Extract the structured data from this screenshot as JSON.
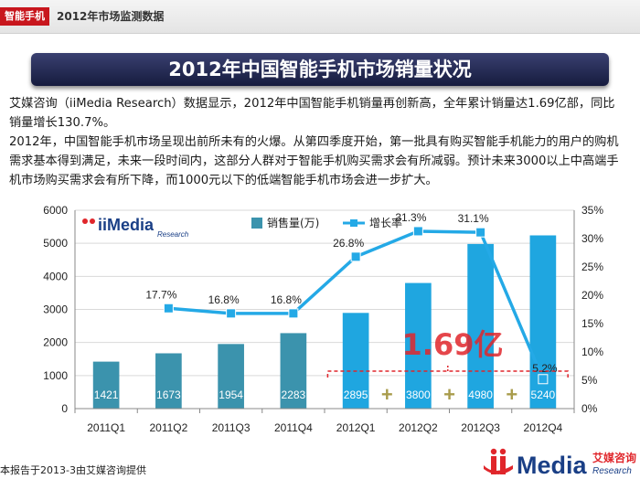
{
  "header": {
    "tag": "智能手机",
    "subtitle": "2012年市场监测数据"
  },
  "title": "2012年中国智能手机市场销量状况",
  "paragraphs": [
    "艾媒咨询（iiMedia Research）数据显示，2012年中国智能手机销量再创新高，全年累计销量达1.69亿部，同比销量增长130.7%。",
    "2012年，中国智能手机市场呈现出前所未有的火爆。从第四季度开始，第一批具有购买智能手机能力的用户的购机需求基本得到满足，未来一段时间内，这部分人群对于智能手机购买需求会有所减弱。预计未来3000以上中高端手机市场购买需求会有所下降，而1000元以下的低端智能手机市场会进一步扩大。"
  ],
  "chart_data": {
    "type": "bar",
    "categories": [
      "2011Q1",
      "2011Q2",
      "2011Q3",
      "2011Q4",
      "2012Q1",
      "2012Q2",
      "2012Q3",
      "2012Q4"
    ],
    "series": [
      {
        "name": "销售量(万)",
        "type": "bar",
        "axis": "left",
        "values": [
          1421,
          1673,
          1954,
          2283,
          2895,
          3800,
          4980,
          5240
        ],
        "labels": [
          "1421",
          "1673",
          "1954",
          "2283",
          "2895",
          "3800",
          "4980",
          "5240"
        ]
      },
      {
        "name": "增长率",
        "type": "line",
        "axis": "right",
        "values": [
          null,
          17.7,
          16.8,
          16.8,
          26.8,
          31.3,
          31.1,
          5.2
        ],
        "labels": [
          "",
          "17.7%",
          "16.8%",
          "16.8%",
          "26.8%",
          "31.3%",
          "31.1%",
          "5.2%"
        ]
      }
    ],
    "y_left": {
      "min": 0,
      "max": 6000,
      "ticks": [
        "0",
        "1000",
        "2000",
        "3000",
        "4000",
        "5000",
        "6000"
      ]
    },
    "y_right": {
      "min": 0,
      "max": 35,
      "ticks": [
        "0%",
        "5%",
        "10%",
        "15%",
        "20%",
        "25%",
        "30%",
        "35%"
      ]
    },
    "annotation": {
      "text": "1.69亿",
      "plus": "+",
      "applies_to": [
        "2012Q1",
        "2012Q2",
        "2012Q3",
        "2012Q4"
      ]
    },
    "legend_position": "top",
    "grid": "horizontal",
    "colors": {
      "bar_2011": "#3b93ad",
      "bar_2012": "#1fa6e0",
      "line": "#24a9e6",
      "annotation": "#e0262b",
      "plus": "#a99c4c"
    },
    "watermark": {
      "lettering": "iiMedia Research"
    }
  },
  "footer": {
    "note": "本报告于2013-3由艾媒咨询提供"
  },
  "logo": {
    "lettering": "iiMedia 艾媒咨询"
  }
}
